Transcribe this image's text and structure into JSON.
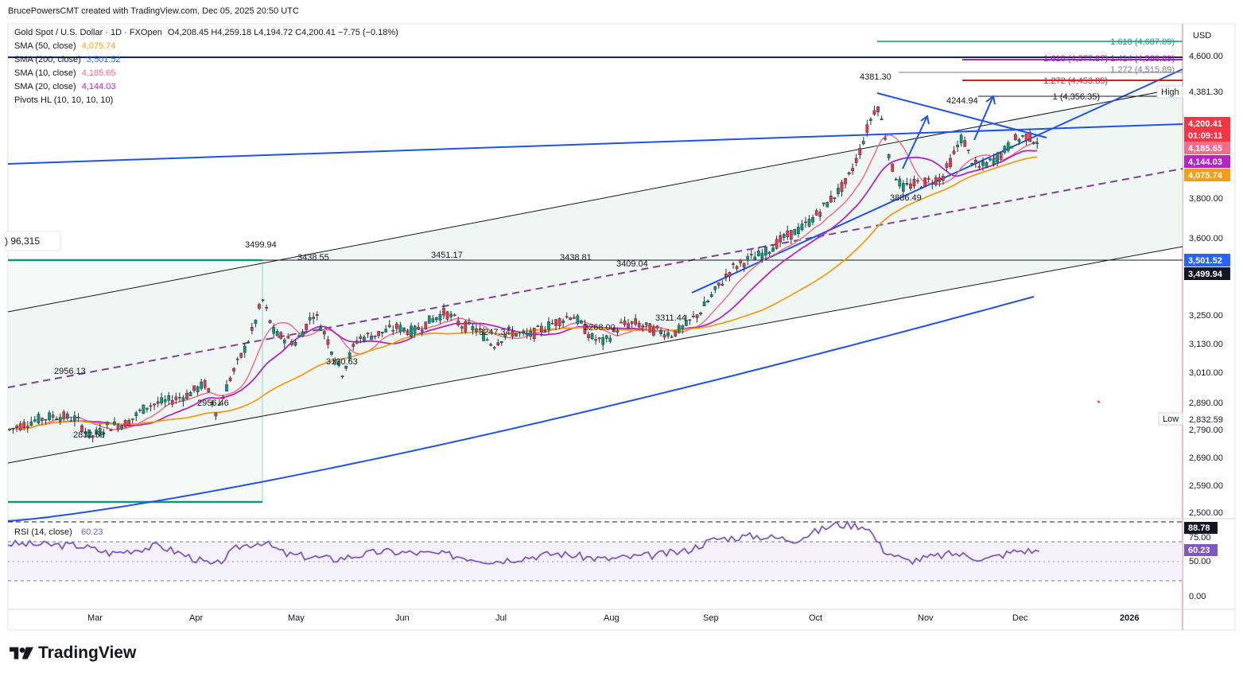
{
  "credit": "BrucePowersCMT created with TradingView.com, Dec 05, 2025 20:50 UTC",
  "legend": {
    "symbol": "Gold Spot / U.S. Dollar · 1D · FXOpen",
    "ohlc": "O4,208.45  H4,259.18  L4,194.72  C4,200.41  −7.75 (−0.18%)",
    "sma50": {
      "label": "SMA (50, close)",
      "value": "4,075.74",
      "color": "#f29d1c"
    },
    "sma200": {
      "label": "SMA (200, close)",
      "value": "3,501.52",
      "color": "#2962ff"
    },
    "sma10": {
      "label": "SMA (10, close)",
      "value": "4,185.65",
      "color": "#f06e8c"
    },
    "sma20": {
      "label": "SMA (20, close)",
      "value": "4,144.03",
      "color": "#b026c9"
    },
    "pivots": "Pivots HL (10, 10, 10, 10)",
    "volume_fragment": ") 96,315"
  },
  "brand": "TradingView",
  "chart_data": {
    "type": "candlestick",
    "currency": "USD",
    "price_ticks": [
      "4,600.00",
      "4,381.30",
      "3,800.00",
      "3,600.00",
      "3,250.00",
      "3,130.00",
      "3,010.00",
      "2,890.00",
      "2,790.00",
      "2,690.00",
      "2,590.00",
      "2,500.00"
    ],
    "tick_values": [
      4600,
      3800,
      3600,
      3250,
      3130,
      3010,
      2890,
      2790,
      2690,
      2590,
      2500
    ],
    "x_labels": [
      "Mar",
      "Apr",
      "May",
      "Jun",
      "Jul",
      "Aug",
      "Sep",
      "Oct",
      "Nov",
      "Dec",
      "2026"
    ],
    "price_labels": [
      {
        "text": "4,381.30",
        "bg": "#ffffff",
        "fg": "#131722"
      },
      {
        "text": "4,200.41",
        "bg": "#f23645",
        "fg": "#ffffff"
      },
      {
        "text": "01:09:11",
        "bg": "#f23645",
        "fg": "#ffffff"
      },
      {
        "text": "4,185.65",
        "bg": "#f06e8c",
        "fg": "#ffffff"
      },
      {
        "text": "4,144.03",
        "bg": "#b026c9",
        "fg": "#ffffff"
      },
      {
        "text": "4,075.74",
        "bg": "#f29d1c",
        "fg": "#ffffff"
      },
      {
        "text": "3,501.52",
        "bg": "#2962ff",
        "fg": "#ffffff"
      },
      {
        "text": "3,499.94",
        "bg": "#131722",
        "fg": "#ffffff"
      },
      {
        "text": "2,832.59",
        "bg": "#ffffff",
        "fg": "#131722"
      }
    ],
    "side_tags": {
      "high": "High",
      "low": "Low"
    },
    "pivot_labels": [
      "4381.30",
      "4244.94",
      "3886.49",
      "3499.94",
      "3438.55",
      "3451.17",
      "3438.81",
      "3409.04",
      "3311.44",
      "3268.00",
      "3247.34",
      "3120.63",
      "2956.46",
      "2956.13",
      "2832.59"
    ],
    "fib_labels": [
      {
        "text": "1.618 (4,687.09)",
        "color": "#089981"
      },
      {
        "text": "1.618 (4,577.87)",
        "color": "#9c27b0"
      },
      {
        "text": "1.414 (4,588.69)",
        "color": "#9c27b0"
      },
      {
        "text": "1.272 (4,515.89)",
        "color": "#787b86"
      },
      {
        "text": "1.272 (4,453.85)",
        "color": "#c62828"
      },
      {
        "text": "1 (4,356.35)",
        "color": "#131722"
      }
    ],
    "last": {
      "open": 4208.45,
      "high": 4259.18,
      "low": 4194.72,
      "close": 4200.41,
      "change": -7.75,
      "change_pct": -0.18
    },
    "sma": {
      "sma10": 4185.65,
      "sma20": 4144.03,
      "sma50": 4075.74,
      "sma200": 3501.52
    },
    "rsi": {
      "label": "RSI (14, close)",
      "value": "60.23",
      "value_num": 60.23,
      "ticks": [
        "75.00",
        "50.00",
        "0.00"
      ],
      "upper_level": "88.78",
      "band": [
        30,
        70
      ]
    },
    "colors": {
      "up": "#089981",
      "down": "#f23645",
      "channel_fill": "#e8f2ef",
      "trend_blue": "#2962ff",
      "rsi_line": "#7e57c2"
    }
  }
}
